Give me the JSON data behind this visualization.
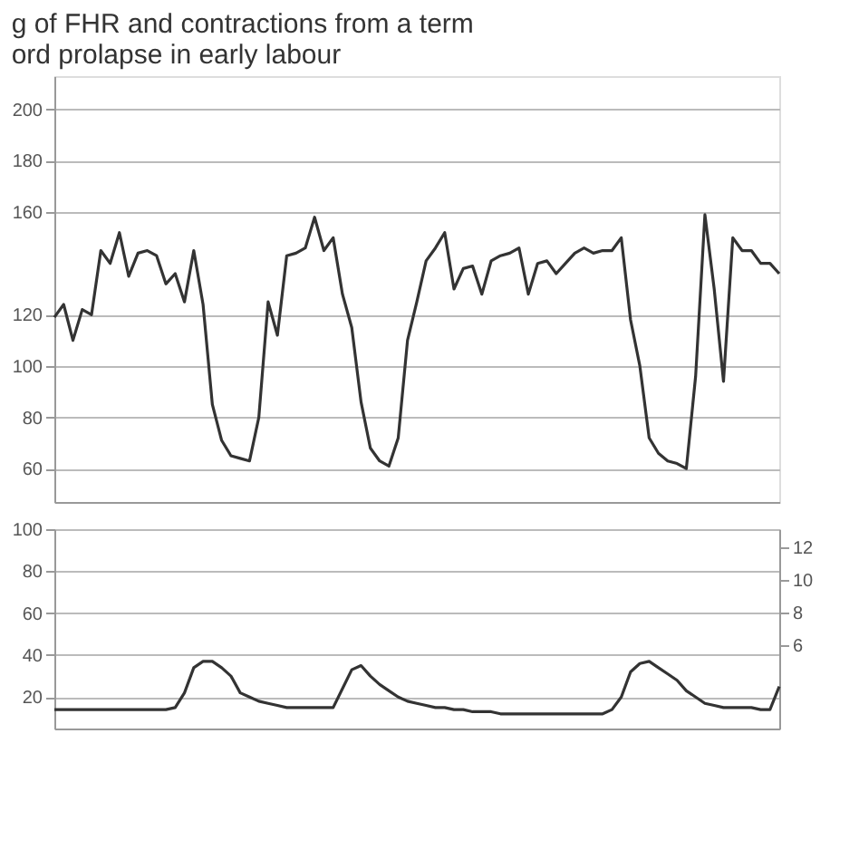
{
  "chart_data": [
    {
      "type": "line",
      "title": "g of FHR and contractions from a term\nord prolapse in early labour",
      "ylim": [
        47,
        213
      ],
      "yticks": [
        60,
        80,
        100,
        120,
        160,
        180,
        200
      ],
      "grid": true,
      "tick_labels": "y",
      "marker": "none",
      "line_style": "solid",
      "categories": [
        null,
        null,
        null,
        null,
        null,
        null,
        null,
        null,
        null,
        null,
        null,
        null,
        null,
        null,
        null,
        null,
        null,
        null,
        null,
        null,
        null,
        null,
        null,
        null,
        null,
        null,
        null,
        null,
        null,
        null,
        null,
        null,
        null,
        null,
        null,
        null,
        null,
        null,
        null,
        null,
        null,
        null,
        null,
        null,
        null,
        null,
        null,
        null,
        null,
        null,
        null,
        null,
        null,
        null,
        null,
        null,
        null,
        null,
        null,
        null,
        null,
        null,
        null,
        null,
        null,
        null,
        null,
        null,
        null,
        null,
        null,
        null,
        null,
        null,
        null,
        null,
        null,
        null,
        null
      ],
      "series": [
        {
          "color": "#333333",
          "values": [
            119,
            124,
            110,
            122,
            120,
            145,
            140,
            152,
            135,
            144,
            145,
            143,
            132,
            136,
            125,
            145,
            124,
            85,
            71,
            65,
            64,
            63,
            80,
            125,
            112,
            143,
            144,
            146,
            158,
            145,
            150,
            128,
            115,
            86,
            68,
            63,
            61,
            72,
            110,
            125,
            141,
            146,
            152,
            130,
            138,
            139,
            128,
            141,
            143,
            144,
            146,
            128,
            140,
            141,
            136,
            140,
            144,
            146,
            144,
            145,
            145,
            150,
            118,
            100,
            72,
            66,
            63,
            62,
            60,
            96,
            159,
            130,
            94,
            150,
            145,
            145,
            140,
            140,
            136
          ]
        }
      ]
    },
    {
      "type": "line",
      "ylim": [
        5,
        100
      ],
      "yticks": [
        20,
        40,
        60,
        80,
        100
      ],
      "y2lim": [
        0.9,
        13.1
      ],
      "y2ticks": [
        6,
        8,
        10,
        12
      ],
      "grid": true,
      "tick_labels": "y",
      "marker": "none",
      "line_style": "solid",
      "categories": [
        null,
        null,
        null,
        null,
        null,
        null,
        null,
        null,
        null,
        null,
        null,
        null,
        null,
        null,
        null,
        null,
        null,
        null,
        null,
        null,
        null,
        null,
        null,
        null,
        null,
        null,
        null,
        null,
        null,
        null,
        null,
        null,
        null,
        null,
        null,
        null,
        null,
        null,
        null,
        null,
        null,
        null,
        null,
        null,
        null,
        null,
        null,
        null,
        null,
        null,
        null,
        null,
        null,
        null,
        null,
        null,
        null,
        null,
        null,
        null,
        null,
        null,
        null,
        null,
        null,
        null,
        null,
        null,
        null,
        null,
        null,
        null,
        null,
        null,
        null,
        null,
        null,
        null,
        null
      ],
      "series": [
        {
          "color": "#333333",
          "values": [
            14,
            14,
            14,
            14,
            14,
            14,
            14,
            14,
            14,
            14,
            14,
            14,
            14,
            15,
            22,
            34,
            37,
            37,
            34,
            30,
            22,
            20,
            18,
            17,
            16,
            15,
            15,
            15,
            15,
            15,
            15,
            24,
            33,
            35,
            30,
            26,
            23,
            20,
            18,
            17,
            16,
            15,
            15,
            14,
            14,
            13,
            13,
            13,
            12,
            12,
            12,
            12,
            12,
            12,
            12,
            12,
            12,
            12,
            12,
            12,
            14,
            20,
            32,
            36,
            37,
            34,
            31,
            28,
            23,
            20,
            17,
            16,
            15,
            15,
            15,
            15,
            14,
            14,
            25
          ]
        }
      ]
    }
  ]
}
